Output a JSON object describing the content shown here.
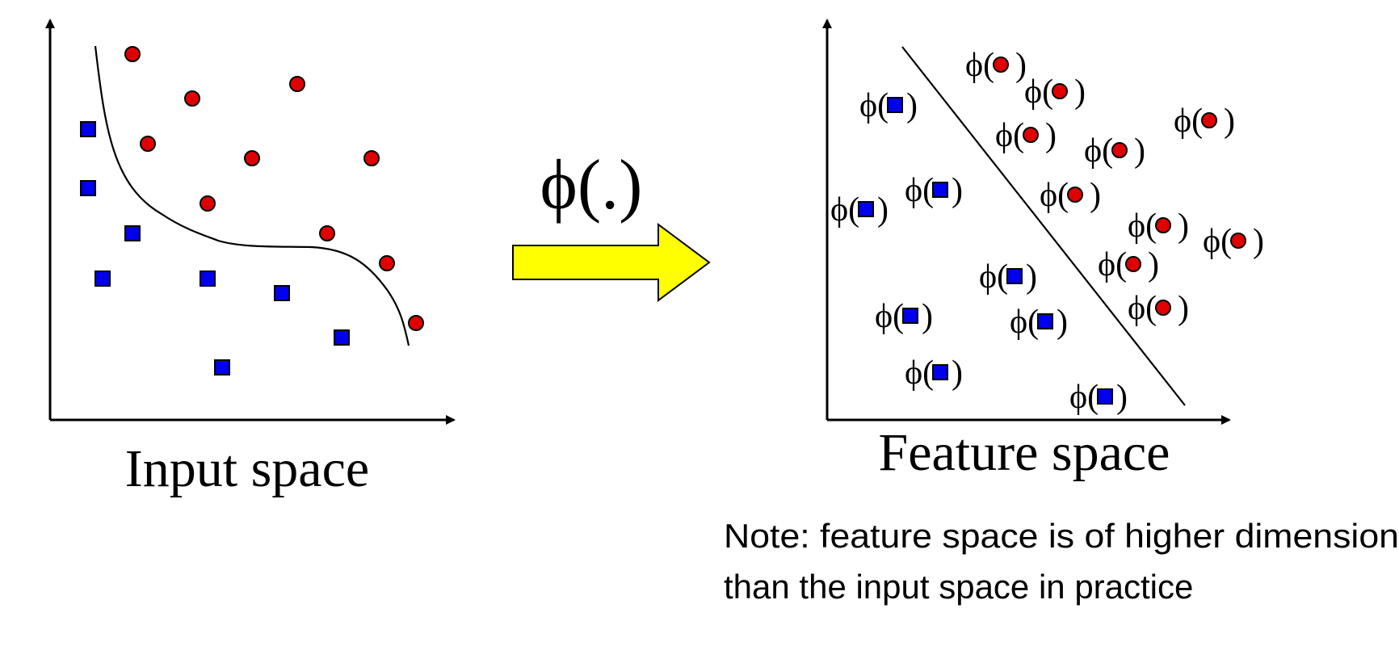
{
  "colors": {
    "class_circle": "#e00000",
    "class_square": "#0000ee",
    "arrow_fill": "#ffff00",
    "ink": "#000000"
  },
  "labels": {
    "input_space": "Input space",
    "feature_space": "Feature space",
    "mapping": "ϕ(.)",
    "phi_prefix": "ϕ(",
    "phi_suffix": ")",
    "note_line1": "Note: feature space is of higher dimension",
    "note_line2": "than the input space in practice"
  },
  "icons": {
    "mapping_arrow": "right-arrow-icon",
    "circle_marker": "red-circle-icon",
    "square_marker": "blue-square-icon"
  }
}
